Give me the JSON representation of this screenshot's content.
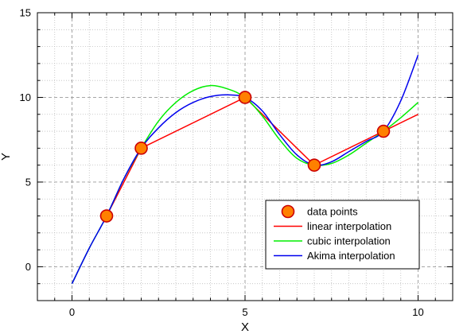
{
  "chart_data": {
    "type": "line",
    "title": "",
    "xlabel": "X",
    "ylabel": "Y",
    "xlim": [
      -1,
      11
    ],
    "ylim": [
      -2,
      15
    ],
    "x_major_ticks": [
      0,
      5,
      10
    ],
    "x_minor_ticks": [
      -0.5,
      0.5,
      1,
      1.5,
      2,
      2.5,
      3,
      3.5,
      4,
      4.5,
      5.5,
      6,
      6.5,
      7,
      7.5,
      8,
      8.5,
      9,
      9.5,
      10.5
    ],
    "y_major_ticks": [
      0,
      5,
      10,
      15
    ],
    "y_minor_ticks": [
      -1,
      1,
      2,
      3,
      4,
      6,
      7,
      8,
      9,
      11,
      12,
      13,
      14
    ],
    "grid": true,
    "legend_position": "bottom-right",
    "series": [
      {
        "name": "data points",
        "kind": "marker",
        "color": "#ff8000",
        "edge_color": "#cc0000",
        "x": [
          1,
          2,
          5,
          7,
          9
        ],
        "y": [
          3,
          7,
          10,
          6,
          8
        ]
      },
      {
        "name": "linear interpolation",
        "kind": "line",
        "color": "#ff0000",
        "x": [
          1,
          2,
          5,
          7,
          9,
          10
        ],
        "y": [
          3,
          7,
          10,
          6,
          8,
          9
        ]
      },
      {
        "name": "cubic interpolation",
        "kind": "line",
        "color": "#00ee00",
        "x": [
          0,
          0.5,
          1,
          1.5,
          2,
          2.5,
          3,
          3.5,
          4,
          4.5,
          5,
          5.5,
          6,
          6.5,
          7,
          7.5,
          8,
          8.5,
          9,
          9.5,
          10
        ],
        "y": [
          -1,
          1.1,
          3,
          5.2,
          7,
          8.6,
          9.7,
          10.4,
          10.7,
          10.5,
          10,
          8.9,
          7.5,
          6.4,
          6,
          6.1,
          6.6,
          7.3,
          8,
          8.8,
          9.7
        ]
      },
      {
        "name": "Akima interpolation",
        "kind": "line",
        "color": "#0000ee",
        "x": [
          0,
          0.5,
          1,
          1.5,
          2,
          2.5,
          3,
          3.5,
          4,
          4.5,
          5,
          5.5,
          6,
          6.5,
          7,
          7.5,
          8,
          8.5,
          9,
          9.5,
          10
        ],
        "y": [
          -1,
          1.1,
          3,
          5.2,
          7,
          8.2,
          9.1,
          9.7,
          10.05,
          10.15,
          10,
          9.2,
          7.8,
          6.6,
          6,
          6.2,
          6.8,
          7.4,
          8,
          9.8,
          12.5
        ]
      }
    ]
  }
}
